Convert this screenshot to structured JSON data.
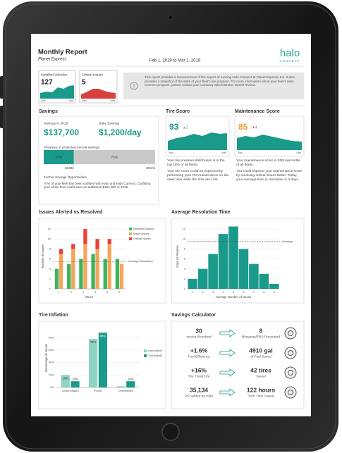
{
  "header": {
    "title": "Monthly Report",
    "company": "Planet Express",
    "date_range": "Feb 1, 2019 to Mar 1, 2019",
    "logo": "halo",
    "logo_sub": "CONNECT"
  },
  "kpis": [
    {
      "label": "Installed Vehicles",
      "value": "127",
      "start": "Dec",
      "end": "Mar"
    },
    {
      "label": "Critical Issues",
      "value": "5",
      "start": "Dec",
      "end": "Mar"
    }
  ],
  "info": "This report provides a measurement of the impact of running Halo Connect at Planet Express, Inc. It also provides a snapshot of the state of your fleet's tire program. For more information about your fleet's Halo Connect program, please contact your company administrator, Daniel Riviera.",
  "savings": {
    "title": "Savings",
    "year_label": "Savings in 2019",
    "year_value": "$137,700",
    "daily_label": "Daily Savings",
    "daily_value": "$1,200/day",
    "progress": {
      "label": "Progress to projected annual savings",
      "values": [
        27,
        73
      ],
      "value_labels": [
        "27%",
        "73%"
      ],
      "colors": [
        "#1a9a8a",
        "#c9c9c9"
      ],
      "tick_labels": [
        "$138k",
        "$510k"
      ]
    },
    "further_title": "Further Savings Opportunities",
    "further_text": "70% of your fleet has been outfitted with Halo and Halo Connect. Outfitting your entire fleet could save an additional $164,000 in 2019."
  },
  "tire_score": {
    "title": "Tire Score",
    "score": "93",
    "change": "▲2",
    "start": "Sep",
    "end": "Mar",
    "text": [
      "Your tire pressure distribution is in the top 18% of all fleets.",
      "Your tire score could be improved by performing your PM maintenance on the steer tires while the tires are cold."
    ]
  },
  "maintenance_score": {
    "title": "Maintenance Score",
    "score": "85",
    "change": "▼4",
    "start": "Sep",
    "end": "Mar",
    "text": [
      "Your maintenance score is 55th percentile of all fleets.",
      "You could improve your maintenance score by resolving critical issues faster. Today, your average time to resolution is 3 days."
    ]
  },
  "chart_data": [
    {
      "type": "bar",
      "title": "Issues Alerted vs Resolved",
      "xlabel": "Week",
      "ylabel": "Number of Issues",
      "categories": [
        "1",
        "2",
        "3",
        "4",
        "5",
        "6"
      ],
      "series": [
        {
          "name": "Resolved Issues",
          "color": "#3cb55e",
          "values": [
            4,
            5,
            6,
            7,
            6,
            6
          ]
        },
        {
          "name": "Major Issues",
          "color": "#f5a55a",
          "stacked": true,
          "values": [
            7,
            8,
            9,
            8,
            9,
            5
          ]
        },
        {
          "name": "Critical Issues",
          "color": "#e8403f",
          "stacked": true,
          "values": [
            1,
            1,
            3,
            2,
            1,
            0
          ]
        }
      ],
      "reference_line": {
        "value": 5.5,
        "label": "Average Resolution"
      },
      "ylim": [
        0,
        13
      ],
      "yticks": [
        0,
        2,
        4,
        6,
        8,
        10,
        12
      ],
      "grid": true
    },
    {
      "type": "bar",
      "title": "Average Resolution Time",
      "xlabel": "Average Number of Issues",
      "ylabel": "Days to Resolve",
      "categories": [
        "1",
        "2",
        "3",
        "4",
        "5",
        "6",
        "7",
        "8",
        "9"
      ],
      "values": [
        2,
        4,
        7,
        11,
        12.5,
        8,
        5,
        3,
        1
      ],
      "color": "#1a9a8a",
      "reference_line": {
        "value": 9.5,
        "label": "Average"
      },
      "ylim": [
        0,
        13
      ],
      "yticks": [
        0,
        2,
        4,
        6,
        8,
        10,
        12
      ],
      "grid": true
    },
    {
      "type": "bar",
      "title": "Tire Inflation",
      "ylabel": "Percentage of Issues",
      "categories": [
        "Underinflated",
        "Proper",
        "Overinflated"
      ],
      "series": [
        {
          "name": "Last Month",
          "color": "#8fd3c6",
          "values": [
            20,
            78,
            2
          ],
          "value_labels": [
            "20%",
            "78%",
            null
          ]
        },
        {
          "name": "This Month",
          "color": "#1a9a8a",
          "values": [
            10,
            88,
            10
          ],
          "value_labels": [
            "10%",
            "88%",
            "10%"
          ]
        }
      ],
      "ylim": [
        0,
        95
      ],
      "yticks": [
        {
          "value": 0,
          "label": "0%"
        },
        {
          "value": 20,
          "label": "20%"
        },
        {
          "value": 40,
          "label": "40%"
        },
        {
          "value": 60,
          "label": "60%"
        },
        {
          "value": 80,
          "label": "80%"
        }
      ],
      "grid": true,
      "legend": "right"
    }
  ],
  "calculator": {
    "title": "Savings Calculator",
    "rows": [
      {
        "value": "30",
        "label": "Issues Resolved",
        "result": "8",
        "result_label": "Blowouts/ERS Prevented"
      },
      {
        "value": "+1.6%",
        "label": "Fuel Efficiency",
        "result": "4910 gal",
        "result_label": "of Fuel Saved"
      },
      {
        "value": "+16%",
        "label": "Tire Tread Life",
        "result": "42 tires",
        "result_label": "Saved"
      },
      {
        "value": "35,134",
        "label": "PSI added by Halo",
        "result": "122 hours",
        "result_label": "Tech Time Saved"
      }
    ]
  }
}
